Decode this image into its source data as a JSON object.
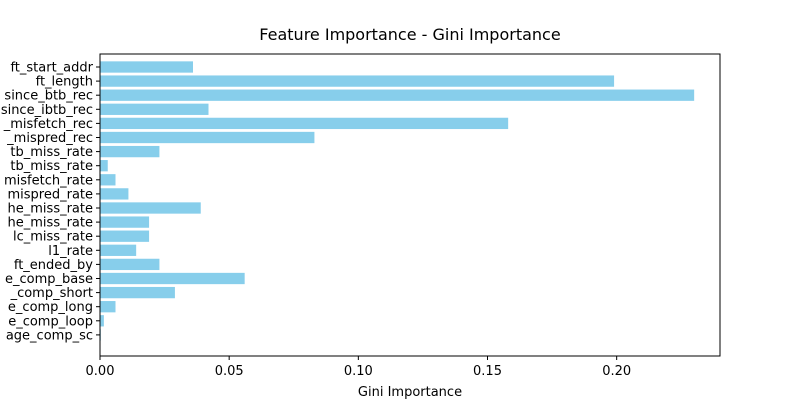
{
  "chart_data": {
    "type": "bar",
    "orientation": "horizontal",
    "title": "Feature Importance - Gini Importance",
    "xlabel": "Gini Importance",
    "ylabel": "",
    "xlim": [
      0,
      0.24
    ],
    "xticks": [
      "0.00",
      "0.05",
      "0.10",
      "0.15",
      "0.20"
    ],
    "xtick_values": [
      0,
      0.05,
      0.1,
      0.15,
      0.2
    ],
    "bar_color": "#87ceeb",
    "categories": [
      "ft_start_addr",
      "ft_length",
      "since_btb_rec",
      "since_ibtb_rec",
      "_misfetch_rec",
      "_mispred_rec",
      "tb_miss_rate",
      "tb_miss_rate",
      "misfetch_rate",
      "mispred_rate",
      "he_miss_rate",
      "he_miss_rate",
      "lc_miss_rate",
      "l1_rate",
      "ft_ended_by",
      "e_comp_base",
      "_comp_short",
      "e_comp_long",
      "e_comp_loop",
      "age_comp_sc"
    ],
    "values": [
      0.036,
      0.199,
      0.23,
      0.042,
      0.158,
      0.083,
      0.023,
      0.003,
      0.006,
      0.011,
      0.039,
      0.019,
      0.019,
      0.014,
      0.023,
      0.056,
      0.029,
      0.006,
      0.0015,
      0.0003
    ]
  }
}
